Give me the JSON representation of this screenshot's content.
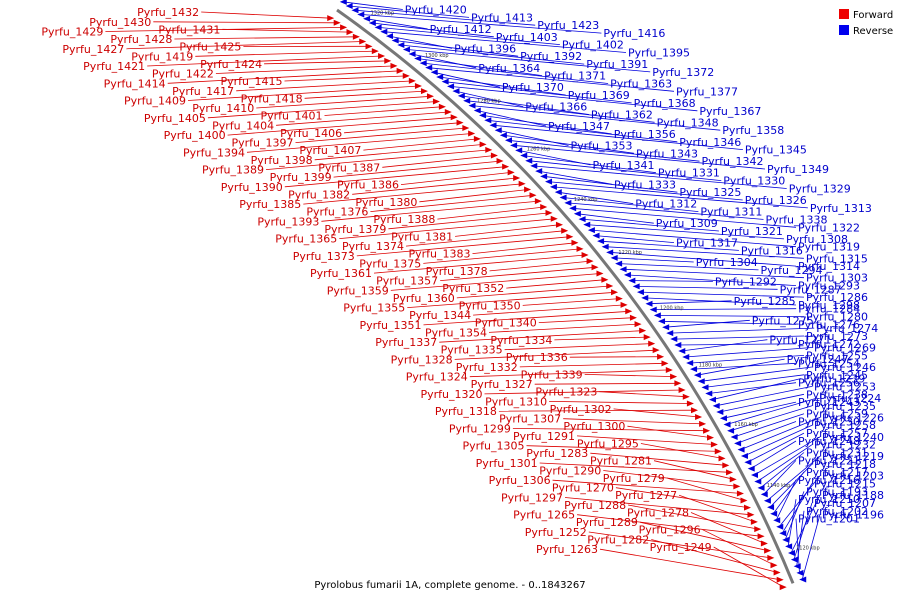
{
  "caption": "Pyrolobus fumarii 1A, complete genome. - 0..1843267",
  "legend": [
    {
      "label": "Forward",
      "color": "#ee0000"
    },
    {
      "label": "Reverse",
      "color": "#0000ee"
    }
  ],
  "colors": {
    "forward": "#dd0000",
    "reverse": "#0000dd",
    "backbone": "#777777"
  },
  "ticks": [
    "1320 kbp",
    "1300 kbp",
    "1280 kbp",
    "1260 kbp",
    "1240 kbp",
    "1220 kbp",
    "1200 kbp",
    "1180 kbp",
    "1160 kbp",
    "1140 kbp",
    "1120 kbp"
  ],
  "forward_genes": [
    "Pyrfu_1432",
    "Pyrfu_1430",
    "Pyrfu_1429",
    "Pyrfu_1431",
    "Pyrfu_1428",
    "Pyrfu_1427",
    "Pyrfu_1425",
    "Pyrfu_1419",
    "Pyrfu_1421",
    "Pyrfu_1424",
    "Pyrfu_1422",
    "Pyrfu_1414",
    "Pyrfu_1415",
    "Pyrfu_1417",
    "Pyrfu_1409",
    "Pyrfu_1418",
    "Pyrfu_1410",
    "Pyrfu_1405",
    "Pyrfu_1401",
    "Pyrfu_1404",
    "Pyrfu_1400",
    "Pyrfu_1406",
    "Pyrfu_1397",
    "Pyrfu_1394",
    "Pyrfu_1407",
    "Pyrfu_1398",
    "Pyrfu_1389",
    "Pyrfu_1387",
    "Pyrfu_1399",
    "Pyrfu_1390",
    "Pyrfu_1386",
    "Pyrfu_1382",
    "Pyrfu_1385",
    "Pyrfu_1380",
    "Pyrfu_1376",
    "Pyrfu_1393",
    "Pyrfu_1388",
    "Pyrfu_1379",
    "Pyrfu_1365",
    "Pyrfu_1381",
    "Pyrfu_1374",
    "Pyrfu_1373",
    "Pyrfu_1383",
    "Pyrfu_1375",
    "Pyrfu_1361",
    "Pyrfu_1378",
    "Pyrfu_1357",
    "Pyrfu_1359",
    "Pyrfu_1352",
    "Pyrfu_1360",
    "Pyrfu_1355",
    "Pyrfu_1350",
    "Pyrfu_1344",
    "Pyrfu_1351",
    "Pyrfu_1340",
    "Pyrfu_1354",
    "Pyrfu_1337",
    "Pyrfu_1334",
    "Pyrfu_1335",
    "Pyrfu_1328",
    "Pyrfu_1336",
    "Pyrfu_1332",
    "Pyrfu_1324",
    "Pyrfu_1339",
    "Pyrfu_1327",
    "Pyrfu_1320",
    "Pyrfu_1323",
    "Pyrfu_1310",
    "Pyrfu_1318",
    "Pyrfu_1302",
    "Pyrfu_1307",
    "Pyrfu_1299",
    "Pyrfu_1300",
    "Pyrfu_1291",
    "Pyrfu_1305",
    "Pyrfu_1295",
    "Pyrfu_1283",
    "Pyrfu_1301",
    "Pyrfu_1281",
    "Pyrfu_1290",
    "Pyrfu_1306",
    "Pyrfu_1279",
    "Pyrfu_1270",
    "Pyrfu_1297",
    "Pyrfu_1277",
    "Pyrfu_1288",
    "Pyrfu_1265",
    "Pyrfu_1278",
    "Pyrfu_1289",
    "Pyrfu_1252",
    "Pyrfu_1296",
    "Pyrfu_1282",
    "Pyrfu_1263",
    "Pyrfu_1249"
  ],
  "reverse_genes": [
    "Pyrfu_1420",
    "Pyrfu_1413",
    "Pyrfu_1423",
    "Pyrfu_1416",
    "Pyrfu_1412",
    "Pyrfu_1403",
    "Pyrfu_1402",
    "Pyrfu_1395",
    "Pyrfu_1396",
    "Pyrfu_1392",
    "Pyrfu_1391",
    "Pyrfu_1372",
    "Pyrfu_1364",
    "Pyrfu_1371",
    "Pyrfu_1363",
    "Pyrfu_1377",
    "Pyrfu_1370",
    "Pyrfu_1369",
    "Pyrfu_1368",
    "Pyrfu_1367",
    "Pyrfu_1366",
    "Pyrfu_1362",
    "Pyrfu_1348",
    "Pyrfu_1358",
    "Pyrfu_1347",
    "Pyrfu_1356",
    "Pyrfu_1346",
    "Pyrfu_1345",
    "Pyrfu_1353",
    "Pyrfu_1343",
    "Pyrfu_1342",
    "Pyrfu_1349",
    "Pyrfu_1341",
    "Pyrfu_1331",
    "Pyrfu_1330",
    "Pyrfu_1329",
    "Pyrfu_1333",
    "Pyrfu_1325",
    "Pyrfu_1326",
    "Pyrfu_1313",
    "Pyrfu_1312",
    "Pyrfu_1311",
    "Pyrfu_1338",
    "Pyrfu_1322",
    "Pyrfu_1309",
    "Pyrfu_1321",
    "Pyrfu_1308",
    "Pyrfu_1319",
    "Pyrfu_1317",
    "Pyrfu_1316",
    "Pyrfu_1315",
    "Pyrfu_1314",
    "Pyrfu_1304",
    "Pyrfu_1294",
    "Pyrfu_1303",
    "Pyrfu_1293",
    "Pyrfu_1292",
    "Pyrfu_1287",
    "Pyrfu_1286",
    "Pyrfu_1298",
    "Pyrfu_1285",
    "Pyrfu_1284",
    "Pyrfu_1280",
    "Pyrfu_1276",
    "Pyrfu_1275",
    "Pyrfu_1274",
    "Pyrfu_1273",
    "Pyrfu_1272",
    "Pyrfu_1271",
    "Pyrfu_1269",
    "Pyrfu_1255",
    "Pyrfu_1254",
    "Pyrfu_1247",
    "Pyrfu_1246",
    "Pyrfu_1245",
    "Pyrfu_1256",
    "Pyrfu_1239",
    "Pyrfu_1253",
    "Pyrfu_1238",
    "Pyrfu_1243",
    "Pyrfu_1224",
    "Pyrfu_1235",
    "Pyrfu_1259",
    "Pyrfu_1230",
    "Pyrfu_1226",
    "Pyrfu_1258",
    "Pyrfu_1257",
    "Pyrfu_1248",
    "Pyrfu_1240",
    "Pyrfu_1232",
    "Pyrfu_1231",
    "Pyrfu_1221",
    "Pyrfu_1219",
    "Pyrfu_1218",
    "Pyrfu_1217",
    "Pyrfu_1216",
    "Pyrfu_1203",
    "Pyrfu_1215",
    "Pyrfu_1193",
    "Pyrfu_1210",
    "Pyrfu_1188",
    "Pyrfu_1207",
    "Pyrfu_1202",
    "Pyrfu_1201",
    "Pyrfu_1196"
  ]
}
